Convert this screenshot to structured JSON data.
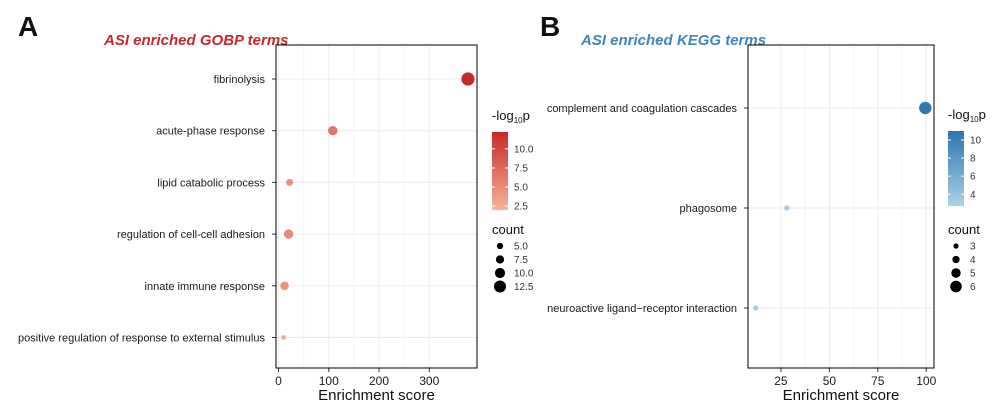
{
  "panels": {
    "a": {
      "letter": "A",
      "title": "ASI enriched GOBP terms"
    },
    "b": {
      "letter": "B",
      "title": "ASI enriched KEGG terms"
    }
  },
  "colors": {
    "gobp_high": "#c8282a",
    "gobp_low": "#f6b49a",
    "kegg_high": "#2e75b2",
    "kegg_low": "#a9d2e6",
    "grid": "#ececec",
    "frame": "#000000"
  },
  "chart_data": [
    {
      "type": "scatter",
      "title": "ASI enriched GOBP terms",
      "xlabel": "Enrichment score",
      "ylabel": "",
      "xlim": [
        -5,
        395
      ],
      "xticks": [
        0,
        100,
        200,
        300
      ],
      "grid": true,
      "categories": [
        "fibrinolysis",
        "acute-phase response",
        "lipid catabolic process",
        "regulation of cell-cell adhesion",
        "innate immune response",
        "positive regulation of response to external stimulus"
      ],
      "points": [
        {
          "term": "fibrinolysis",
          "x": 377,
          "neglog10p": 12.2,
          "count": 14
        },
        {
          "term": "acute-phase response",
          "x": 108,
          "neglog10p": 6.5,
          "count": 9
        },
        {
          "term": "lipid catabolic process",
          "x": 22,
          "neglog10p": 4.6,
          "count": 6
        },
        {
          "term": "regulation of cell-cell adhesion",
          "x": 20,
          "neglog10p": 5.0,
          "count": 9
        },
        {
          "term": "innate immune response",
          "x": 12,
          "neglog10p": 4.4,
          "count": 8
        },
        {
          "term": "positive regulation of response to external stimulus",
          "x": 10,
          "neglog10p": 2.4,
          "count": 3
        }
      ],
      "color_legend": {
        "title": "-log",
        "subscript": "10",
        "suffix": "p",
        "ticks": [
          10.0,
          7.5,
          5.0,
          2.5
        ],
        "tick_labels": [
          "10.0",
          "7.5",
          "5.0",
          "2.5"
        ],
        "range": [
          2.0,
          12.2
        ]
      },
      "size_legend": {
        "title": "count",
        "values": [
          5.0,
          7.5,
          10.0,
          12.5
        ],
        "labels": [
          "5.0",
          "7.5",
          "10.0",
          "12.5"
        ],
        "range": [
          3,
          14
        ]
      }
    },
    {
      "type": "scatter",
      "title": "ASI enriched KEGG terms",
      "xlabel": "Enrichment score",
      "ylabel": "",
      "xlim": [
        8,
        104
      ],
      "xticks": [
        25,
        50,
        75,
        100
      ],
      "grid": true,
      "categories": [
        "complement and coagulation cascades",
        "phagosome",
        "neuroactive ligand−receptor interaction"
      ],
      "points": [
        {
          "term": "complement and coagulation cascades",
          "x": 99.5,
          "neglog10p": 10.8,
          "count": 6.4
        },
        {
          "term": "phagosome",
          "x": 28,
          "neglog10p": 3.2,
          "count": 3
        },
        {
          "term": "neuroactive ligand−receptor interaction",
          "x": 12,
          "neglog10p": 3.0,
          "count": 3
        }
      ],
      "color_legend": {
        "title": "-log",
        "subscript": "10",
        "suffix": "p",
        "ticks": [
          10,
          8,
          6,
          4
        ],
        "tick_labels": [
          "10",
          "8",
          "6",
          "4"
        ],
        "range": [
          2.7,
          11.0
        ]
      },
      "size_legend": {
        "title": "count",
        "values": [
          3,
          4,
          5,
          6
        ],
        "labels": [
          "3",
          "4",
          "5",
          "6"
        ],
        "range": [
          3,
          6.5
        ]
      }
    }
  ]
}
